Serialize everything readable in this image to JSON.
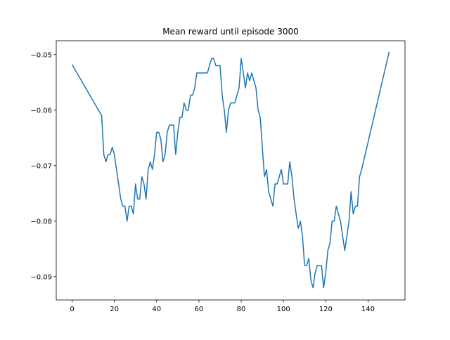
{
  "chart_data": {
    "type": "line",
    "title": "Mean reward until episode 3000",
    "x": [
      0,
      14,
      15,
      16,
      17,
      18,
      19,
      20,
      21,
      22,
      23,
      24,
      25,
      26,
      27,
      28,
      29,
      30,
      31,
      32,
      33,
      34,
      35,
      36,
      37,
      38,
      39,
      40,
      41,
      42,
      43,
      44,
      45,
      46,
      47,
      48,
      49,
      50,
      51,
      52,
      53,
      54,
      55,
      56,
      57,
      58,
      59,
      60,
      61,
      62,
      63,
      64,
      65,
      66,
      67,
      68,
      69,
      70,
      71,
      72,
      73,
      74,
      75,
      76,
      77,
      78,
      79,
      80,
      81,
      82,
      83,
      84,
      85,
      86,
      87,
      88,
      89,
      90,
      91,
      92,
      93,
      94,
      95,
      96,
      97,
      98,
      99,
      100,
      101,
      102,
      103,
      104,
      105,
      106,
      107,
      108,
      109,
      110,
      111,
      112,
      113,
      114,
      115,
      116,
      117,
      118,
      119,
      120,
      121,
      122,
      123,
      124,
      125,
      126,
      127,
      128,
      129,
      130,
      131,
      132,
      133,
      134,
      135,
      136,
      137,
      150
    ],
    "series": [
      {
        "color": "#1f77b4",
        "values": [
          -0.0518,
          -0.061,
          -0.068,
          -0.0693,
          -0.068,
          -0.068,
          -0.0667,
          -0.068,
          -0.0707,
          -0.0733,
          -0.076,
          -0.0773,
          -0.0773,
          -0.08,
          -0.0773,
          -0.0773,
          -0.0787,
          -0.0733,
          -0.076,
          -0.076,
          -0.072,
          -0.0733,
          -0.076,
          -0.0707,
          -0.0693,
          -0.0707,
          -0.068,
          -0.064,
          -0.064,
          -0.0653,
          -0.0693,
          -0.068,
          -0.064,
          -0.0627,
          -0.0627,
          -0.0627,
          -0.068,
          -0.064,
          -0.0613,
          -0.0613,
          -0.0587,
          -0.06,
          -0.06,
          -0.0573,
          -0.0573,
          -0.056,
          -0.0533,
          -0.0533,
          -0.0533,
          -0.0533,
          -0.0533,
          -0.0533,
          -0.052,
          -0.0507,
          -0.0507,
          -0.052,
          -0.052,
          -0.052,
          -0.0573,
          -0.06,
          -0.064,
          -0.06,
          -0.0587,
          -0.0587,
          -0.0587,
          -0.0573,
          -0.056,
          -0.0507,
          -0.0533,
          -0.056,
          -0.0533,
          -0.0547,
          -0.0533,
          -0.0547,
          -0.056,
          -0.06,
          -0.0613,
          -0.0667,
          -0.072,
          -0.0707,
          -0.0747,
          -0.076,
          -0.0773,
          -0.0733,
          -0.0733,
          -0.072,
          -0.0707,
          -0.0733,
          -0.0733,
          -0.0733,
          -0.0693,
          -0.072,
          -0.076,
          -0.0787,
          -0.0813,
          -0.08,
          -0.0827,
          -0.088,
          -0.088,
          -0.0867,
          -0.0907,
          -0.092,
          -0.0893,
          -0.088,
          -0.088,
          -0.088,
          -0.092,
          -0.0893,
          -0.0853,
          -0.084,
          -0.08,
          -0.08,
          -0.0773,
          -0.0787,
          -0.08,
          -0.0827,
          -0.0853,
          -0.0827,
          -0.08,
          -0.0747,
          -0.0787,
          -0.0773,
          -0.0773,
          -0.072,
          -0.0707,
          -0.0495
        ]
      }
    ],
    "xlim": [
      -7.5,
      157.5
    ],
    "xticks": [
      0,
      20,
      40,
      60,
      80,
      100,
      120,
      140
    ],
    "ylim": [
      -0.0942,
      -0.0475
    ],
    "yticks": [
      {
        "value": -0.09,
        "label": "−0.09"
      },
      {
        "value": -0.08,
        "label": "−0.08"
      },
      {
        "value": -0.07,
        "label": "−0.07"
      },
      {
        "value": -0.06,
        "label": "−0.06"
      },
      {
        "value": -0.05,
        "label": "−0.05"
      }
    ]
  }
}
